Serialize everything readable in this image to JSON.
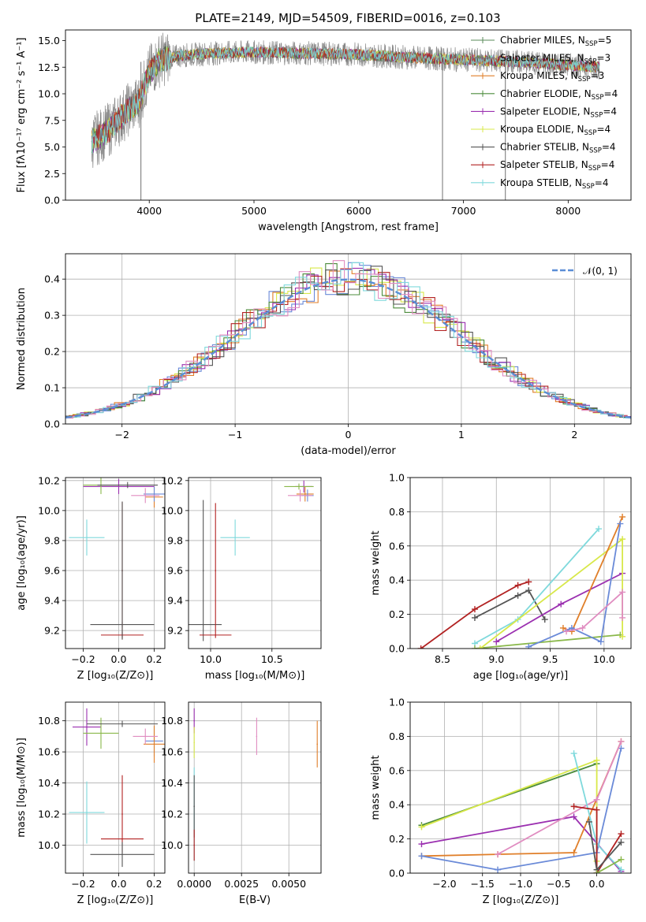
{
  "title": "PLATE=2149, MJD=54509, FIBERID=0016, z=0.103",
  "colors": {
    "chabrier_miles": "#5a8a5a",
    "salpeter_miles": "#7a7a7a",
    "kroupa_miles": "#e07f2a",
    "chabrier_elodie": "#4c8c3c",
    "salpeter_elodie": "#9b30b0",
    "kroupa_elodie": "#d8e84a",
    "chabrier_stelib": "#555555",
    "salpeter_stelib": "#b22222",
    "kroupa_stelib": "#7fd9dc",
    "pink": "#e08cc0",
    "blue": "#6a8ad8",
    "normal": "#5b8ed6",
    "grid": "#b0b0b0"
  },
  "legend_spectrum": [
    {
      "pre": "Chabrier MILES, N",
      "sub": "SSP",
      "post": "=5",
      "color": "#5a8a5a"
    },
    {
      "pre": "Salpeter MILES, N",
      "sub": "SSP",
      "post": "=3",
      "color": "#7a7a7a"
    },
    {
      "pre": "Kroupa MILES, N",
      "sub": "SSP",
      "post": "=3",
      "color": "#e07f2a"
    },
    {
      "pre": "Chabrier ELODIE, N",
      "sub": "SSP",
      "post": "=4",
      "color": "#4c8c3c"
    },
    {
      "pre": "Salpeter ELODIE, N",
      "sub": "SSP",
      "post": "=4",
      "color": "#9b30b0"
    },
    {
      "pre": "Kroupa ELODIE, N",
      "sub": "SSP",
      "post": "=4",
      "color": "#d8e84a"
    },
    {
      "pre": "Chabrier STELIB, N",
      "sub": "SSP",
      "post": "=4",
      "color": "#555555"
    },
    {
      "pre": "Salpeter STELIB, N",
      "sub": "SSP",
      "post": "=4",
      "color": "#b22222"
    },
    {
      "pre": "Kroupa STELIB, N",
      "sub": "SSP",
      "post": "=4",
      "color": "#7fd9dc"
    }
  ],
  "legend_normal": "𝒩(0, 1)",
  "chart_data": [
    {
      "type": "line",
      "panel": "spectrum",
      "xlabel": "wavelength [Angstrom, rest frame]",
      "ylabel": "Flux [fλ10⁻¹⁷ erg cm⁻² s⁻¹ A⁻¹]",
      "xlim": [
        3200,
        8600
      ],
      "ylim": [
        0,
        16
      ],
      "xticks": [
        4000,
        5000,
        6000,
        7000,
        8000
      ],
      "yticks": [
        0.0,
        2.5,
        5.0,
        7.5,
        10.0,
        12.5,
        15.0
      ],
      "continuum": {
        "x": [
          3450,
          3600,
          3700,
          3800,
          3900,
          4000,
          4100,
          4300,
          4600,
          5000,
          5500,
          6000,
          6500,
          7000,
          7500,
          8000,
          8300
        ],
        "y": [
          5.5,
          6.5,
          7.5,
          8.5,
          9.2,
          12.0,
          13.2,
          13.6,
          13.8,
          13.9,
          13.8,
          13.7,
          13.4,
          13.2,
          13.0,
          12.7,
          12.5
        ]
      },
      "gaps_x": [
        3920,
        6800,
        7400
      ],
      "noise_amplitude": 1.5
    },
    {
      "type": "line",
      "panel": "residual_histogram",
      "xlabel": "(data-model)/error",
      "ylabel": "Normed distribution",
      "xlim": [
        -2.5,
        2.5
      ],
      "ylim": [
        0,
        0.47
      ],
      "xticks": [
        -2,
        -1,
        0,
        1,
        2
      ],
      "yticks": [
        0.0,
        0.1,
        0.2,
        0.3,
        0.4
      ],
      "bin_width": 0.1,
      "normal": {
        "mean": 0,
        "sigma": 1
      }
    },
    {
      "type": "scatter",
      "panel": "age_vs_Z",
      "xlabel": "Z [log₁₀(Z/Z⊙)]",
      "ylabel": "age  [log₁₀(age/yr)]",
      "xlim": [
        -0.3,
        0.26
      ],
      "ylim": [
        9.08,
        10.22
      ],
      "xticks": [
        -0.2,
        0.0,
        0.2
      ],
      "yticks": [
        9.2,
        9.4,
        9.6,
        9.8,
        10.0,
        10.2
      ],
      "points": [
        {
          "x": 0.2,
          "y": 10.09,
          "xerr": 0.05,
          "yerr": 0.07,
          "color": "#e07f2a"
        },
        {
          "x": 0.2,
          "y": 10.11,
          "xerr": 0.06,
          "yerr": 0.05,
          "color": "#6a8ad8"
        },
        {
          "x": 0.0,
          "y": 10.16,
          "xerr": 0.2,
          "yerr": 0.05,
          "color": "#9b30b0"
        },
        {
          "x": -0.1,
          "y": 10.17,
          "xerr": 0.1,
          "yerr": 0.06,
          "color": "#8ab84a"
        },
        {
          "x": 0.05,
          "y": 10.17,
          "xerr": 0.17,
          "yerr": 0.02,
          "color": "#555555"
        },
        {
          "x": 0.15,
          "y": 10.1,
          "xerr": 0.08,
          "yerr": 0.05,
          "color": "#e08cc0"
        },
        {
          "x": -0.18,
          "y": 9.82,
          "xerr": 0.1,
          "yerr": 0.12,
          "color": "#7fd9dc"
        },
        {
          "x": 0.02,
          "y": 9.24,
          "xerr": 0.18,
          "yerr": 0.02,
          "color": "#555555"
        },
        {
          "x": 0.02,
          "y": 9.17,
          "xerr": 0.12,
          "yerr": 0.02,
          "color": "#b22222"
        },
        {
          "x": 0.02,
          "y": 9.6,
          "xerr": 0.0,
          "yerr": 0.46,
          "color": "#b22222"
        },
        {
          "x": 0.02,
          "y": 9.6,
          "xerr": 0.0,
          "yerr": 0.46,
          "color": "#555555"
        }
      ]
    },
    {
      "type": "scatter",
      "panel": "age_vs_mass",
      "xlabel": "mass [log₁₀(M/M⊙)]",
      "ylabel": "",
      "xlim": [
        9.82,
        10.9
      ],
      "ylim": [
        9.08,
        10.22
      ],
      "xticks": [
        10.0,
        10.5
      ],
      "yticks": [
        9.2,
        9.4,
        9.6,
        9.8,
        10.0,
        10.2
      ],
      "points": [
        {
          "x": 10.77,
          "y": 10.11,
          "xerr": 0.07,
          "yerr": 0.05,
          "color": "#e07f2a"
        },
        {
          "x": 10.79,
          "y": 10.1,
          "xerr": 0.05,
          "yerr": 0.04,
          "color": "#6a8ad8"
        },
        {
          "x": 10.76,
          "y": 10.16,
          "xerr": 0.07,
          "yerr": 0.04,
          "color": "#9b30b0"
        },
        {
          "x": 10.72,
          "y": 10.16,
          "xerr": 0.12,
          "yerr": 0.02,
          "color": "#8ab84a"
        },
        {
          "x": 10.73,
          "y": 10.1,
          "xerr": 0.1,
          "yerr": 0.04,
          "color": "#e08cc0"
        },
        {
          "x": 10.2,
          "y": 9.82,
          "xerr": 0.12,
          "yerr": 0.12,
          "color": "#7fd9dc"
        },
        {
          "x": 9.94,
          "y": 9.24,
          "xerr": 0.15,
          "yerr": 0.0,
          "color": "#555555"
        },
        {
          "x": 9.94,
          "y": 9.6,
          "xerr": 0.0,
          "yerr": 0.47,
          "color": "#555555"
        },
        {
          "x": 10.04,
          "y": 9.17,
          "xerr": 0.13,
          "yerr": 0.0,
          "color": "#b22222"
        },
        {
          "x": 10.04,
          "y": 9.6,
          "xerr": 0.0,
          "yerr": 0.45,
          "color": "#b22222"
        }
      ]
    },
    {
      "type": "line",
      "panel": "massweight_vs_age",
      "xlabel": "age  [log₁₀(age/yr)]",
      "ylabel": "mass weight",
      "xlim": [
        8.2,
        10.25
      ],
      "ylim": [
        0,
        1
      ],
      "xticks": [
        8.5,
        9.0,
        9.5,
        10.0
      ],
      "yticks": [
        0.0,
        0.2,
        0.4,
        0.6,
        0.8,
        1.0
      ],
      "series": [
        {
          "color": "#b22222",
          "x": [
            8.3,
            8.8,
            9.2,
            9.3
          ],
          "y": [
            0.0,
            0.23,
            0.37,
            0.39
          ]
        },
        {
          "color": "#555555",
          "x": [
            8.8,
            9.2,
            9.3,
            9.45
          ],
          "y": [
            0.18,
            0.31,
            0.34,
            0.17
          ]
        },
        {
          "color": "#7fd9dc",
          "x": [
            8.8,
            9.2,
            9.95
          ],
          "y": [
            0.03,
            0.17,
            0.7
          ]
        },
        {
          "color": "#9b30b0",
          "x": [
            9.0,
            9.6,
            10.17
          ],
          "y": [
            0.04,
            0.26,
            0.44
          ]
        },
        {
          "color": "#8ab84a",
          "x": [
            8.8,
            10.15
          ],
          "y": [
            0.0,
            0.08
          ]
        },
        {
          "color": "#d8e84a",
          "x": [
            8.85,
            10.17,
            10.17
          ],
          "y": [
            0.0,
            0.64,
            0.07
          ]
        },
        {
          "color": "#e07f2a",
          "x": [
            9.62,
            9.7,
            10.17
          ],
          "y": [
            0.12,
            0.1,
            0.77
          ]
        },
        {
          "color": "#6a8ad8",
          "x": [
            9.3,
            9.7,
            9.97,
            10.15
          ],
          "y": [
            0.01,
            0.12,
            0.04,
            0.73
          ]
        },
        {
          "color": "#e08cc0",
          "x": [
            9.65,
            9.8,
            10.17,
            10.17
          ],
          "y": [
            0.1,
            0.12,
            0.33,
            0.18
          ]
        }
      ]
    },
    {
      "type": "scatter",
      "panel": "mass_vs_Z",
      "xlabel": "Z [log₁₀(Z/Z⊙)]",
      "ylabel": "mass [log₁₀(M/M⊙)]",
      "xlim": [
        -0.3,
        0.26
      ],
      "ylim": [
        9.82,
        10.92
      ],
      "xticks": [
        -0.2,
        0.0,
        0.2
      ],
      "yticks": [
        10.0,
        10.2,
        10.4,
        10.6,
        10.8
      ],
      "points": [
        {
          "x": 0.2,
          "y": 10.67,
          "xerr": 0.05,
          "yerr": 0.1,
          "color": "#6a8ad8"
        },
        {
          "x": 0.2,
          "y": 10.65,
          "xerr": 0.06,
          "yerr": 0.12,
          "color": "#e07f2a"
        },
        {
          "x": -0.18,
          "y": 10.76,
          "xerr": 0.08,
          "yerr": 0.12,
          "color": "#9b30b0"
        },
        {
          "x": -0.1,
          "y": 10.72,
          "xerr": 0.1,
          "yerr": 0.1,
          "color": "#8ab84a"
        },
        {
          "x": 0.02,
          "y": 10.78,
          "xerr": 0.2,
          "yerr": 0.02,
          "color": "#555555"
        },
        {
          "x": 0.15,
          "y": 10.7,
          "xerr": 0.07,
          "yerr": 0.05,
          "color": "#e08cc0"
        },
        {
          "x": -0.18,
          "y": 10.21,
          "xerr": 0.1,
          "yerr": 0.2,
          "color": "#7fd9dc"
        },
        {
          "x": 0.02,
          "y": 10.2,
          "xerr": 0.0,
          "yerr": 0.25,
          "color": "#b22222"
        },
        {
          "x": 0.02,
          "y": 10.04,
          "xerr": 0.12,
          "yerr": 0.0,
          "color": "#b22222"
        },
        {
          "x": 0.02,
          "y": 9.94,
          "xerr": 0.18,
          "yerr": 0.08,
          "color": "#555555"
        }
      ]
    },
    {
      "type": "scatter",
      "panel": "mass_vs_ebv",
      "xlabel": "E(B-V)",
      "ylabel": "",
      "xlim": [
        -0.0003,
        0.0067
      ],
      "ylim": [
        9.82,
        10.92
      ],
      "xticks": [
        0.0,
        0.0025,
        0.005
      ],
      "xticklabels": [
        "0.0000",
        "0.0025",
        "0.0050"
      ],
      "yticks": [
        10.0,
        10.2,
        10.4,
        10.6,
        10.8
      ],
      "points": [
        {
          "x": 0.0,
          "y": 10.8,
          "yerr": 0.08,
          "color": "#9b30b0"
        },
        {
          "x": 0.0,
          "y": 10.66,
          "yerr": 0.1,
          "color": "#d8e84a"
        },
        {
          "x": 0.0,
          "y": 10.2,
          "yerr": 0.3,
          "color": "#7fd9dc"
        },
        {
          "x": 0.0,
          "y": 10.25,
          "yerr": 0.2,
          "color": "#555555"
        },
        {
          "x": 0.0,
          "y": 10.0,
          "yerr": 0.1,
          "color": "#b22222"
        },
        {
          "x": 0.0033,
          "y": 10.7,
          "yerr": 0.12,
          "color": "#e08cc0"
        },
        {
          "x": 0.0065,
          "y": 10.65,
          "yerr": 0.15,
          "color": "#e07f2a"
        }
      ]
    },
    {
      "type": "line",
      "panel": "massweight_vs_Z",
      "xlabel": "Z [log₁₀(Z/Z⊙)]",
      "ylabel": "mass weight",
      "xlim": [
        -2.45,
        0.45
      ],
      "ylim": [
        0,
        1
      ],
      "xticks": [
        -2.0,
        -1.5,
        -1.0,
        -0.5,
        0.0
      ],
      "yticks": [
        0.0,
        0.2,
        0.4,
        0.6,
        0.8,
        1.0
      ],
      "series": [
        {
          "color": "#4c8c3c",
          "x": [
            -2.3,
            0.0
          ],
          "y": [
            0.28,
            0.64
          ]
        },
        {
          "color": "#d8e84a",
          "x": [
            -2.3,
            0.0,
            0.0
          ],
          "y": [
            0.27,
            0.66,
            0.07
          ]
        },
        {
          "color": "#9b30b0",
          "x": [
            -2.3,
            -0.3,
            0.32
          ],
          "y": [
            0.17,
            0.33,
            0.01
          ]
        },
        {
          "color": "#e07f2a",
          "x": [
            -2.3,
            -1.3,
            -0.3,
            0.32
          ],
          "y": [
            0.1,
            0.11,
            0.12,
            0.77
          ]
        },
        {
          "color": "#6a8ad8",
          "x": [
            -2.3,
            -1.3,
            0.0,
            0.32
          ],
          "y": [
            0.1,
            0.02,
            0.12,
            0.73
          ]
        },
        {
          "color": "#e08cc0",
          "x": [
            -1.3,
            0.0,
            0.32
          ],
          "y": [
            0.11,
            0.43,
            0.77
          ]
        },
        {
          "color": "#7fd9dc",
          "x": [
            -0.3,
            0.0,
            0.32
          ],
          "y": [
            0.7,
            0.17,
            0.02
          ]
        },
        {
          "color": "#b22222",
          "x": [
            -0.3,
            0.0,
            0.0,
            0.32
          ],
          "y": [
            0.39,
            0.37,
            0.0,
            0.23
          ]
        },
        {
          "color": "#555555",
          "x": [
            -0.1,
            0.0,
            0.32
          ],
          "y": [
            0.3,
            0.02,
            0.18
          ]
        },
        {
          "color": "#8ab84a",
          "x": [
            0.0,
            0.32
          ],
          "y": [
            0.0,
            0.08
          ]
        }
      ]
    }
  ]
}
